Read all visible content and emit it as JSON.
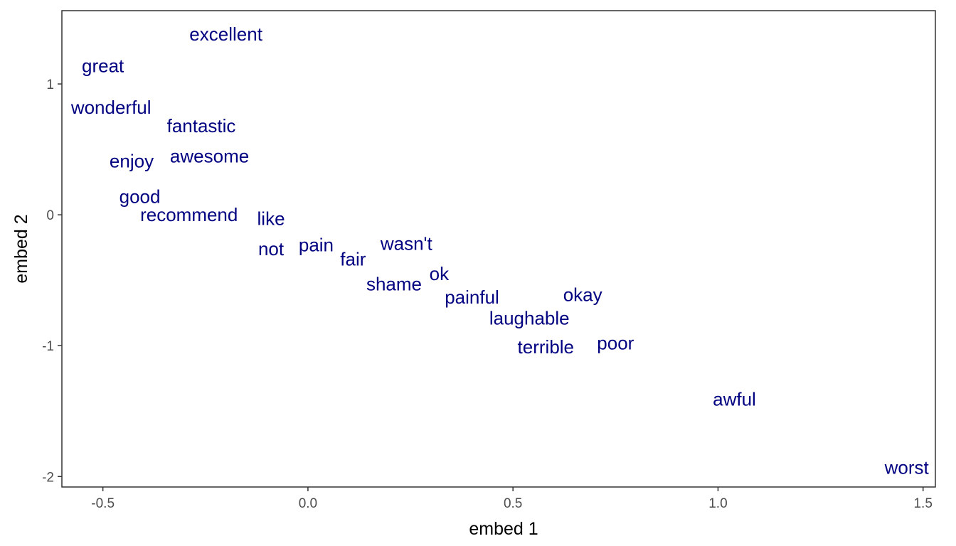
{
  "chart_data": {
    "type": "scatter",
    "title": "",
    "xlabel": "embed 1",
    "ylabel": "embed 2",
    "xlim": [
      -0.6,
      1.53
    ],
    "ylim": [
      -2.08,
      1.56
    ],
    "xticks": [
      -0.5,
      0.0,
      0.5,
      1.0,
      1.5
    ],
    "xtick_labels": [
      "-0.5",
      "0.0",
      "0.5",
      "1.0",
      "1.5"
    ],
    "yticks": [
      1,
      0,
      -1,
      -2
    ],
    "ytick_labels": [
      "1",
      "0",
      "-1",
      "-2"
    ],
    "grid": false,
    "label_color": "#000080",
    "points": [
      {
        "label": "excellent",
        "x": -0.2,
        "y": 1.38
      },
      {
        "label": "great",
        "x": -0.5,
        "y": 1.14
      },
      {
        "label": "wonderful",
        "x": -0.48,
        "y": 0.82
      },
      {
        "label": "fantastic",
        "x": -0.26,
        "y": 0.68
      },
      {
        "label": "enjoy",
        "x": -0.43,
        "y": 0.41
      },
      {
        "label": "awesome",
        "x": -0.24,
        "y": 0.45
      },
      {
        "label": "good",
        "x": -0.41,
        "y": 0.14
      },
      {
        "label": "recommend",
        "x": -0.29,
        "y": 0.0
      },
      {
        "label": "like",
        "x": -0.09,
        "y": -0.03
      },
      {
        "label": "not",
        "x": -0.09,
        "y": -0.26
      },
      {
        "label": "pain",
        "x": 0.02,
        "y": -0.23
      },
      {
        "label": "fair",
        "x": 0.11,
        "y": -0.34
      },
      {
        "label": "wasn't",
        "x": 0.24,
        "y": -0.22
      },
      {
        "label": "shame",
        "x": 0.21,
        "y": -0.53
      },
      {
        "label": "ok",
        "x": 0.32,
        "y": -0.45
      },
      {
        "label": "painful",
        "x": 0.4,
        "y": -0.63
      },
      {
        "label": "okay",
        "x": 0.67,
        "y": -0.61
      },
      {
        "label": "laughable",
        "x": 0.54,
        "y": -0.79
      },
      {
        "label": "terrible",
        "x": 0.58,
        "y": -1.01
      },
      {
        "label": "poor",
        "x": 0.75,
        "y": -0.98
      },
      {
        "label": "awful",
        "x": 1.04,
        "y": -1.41
      },
      {
        "label": "worst",
        "x": 1.46,
        "y": -1.93
      }
    ]
  }
}
